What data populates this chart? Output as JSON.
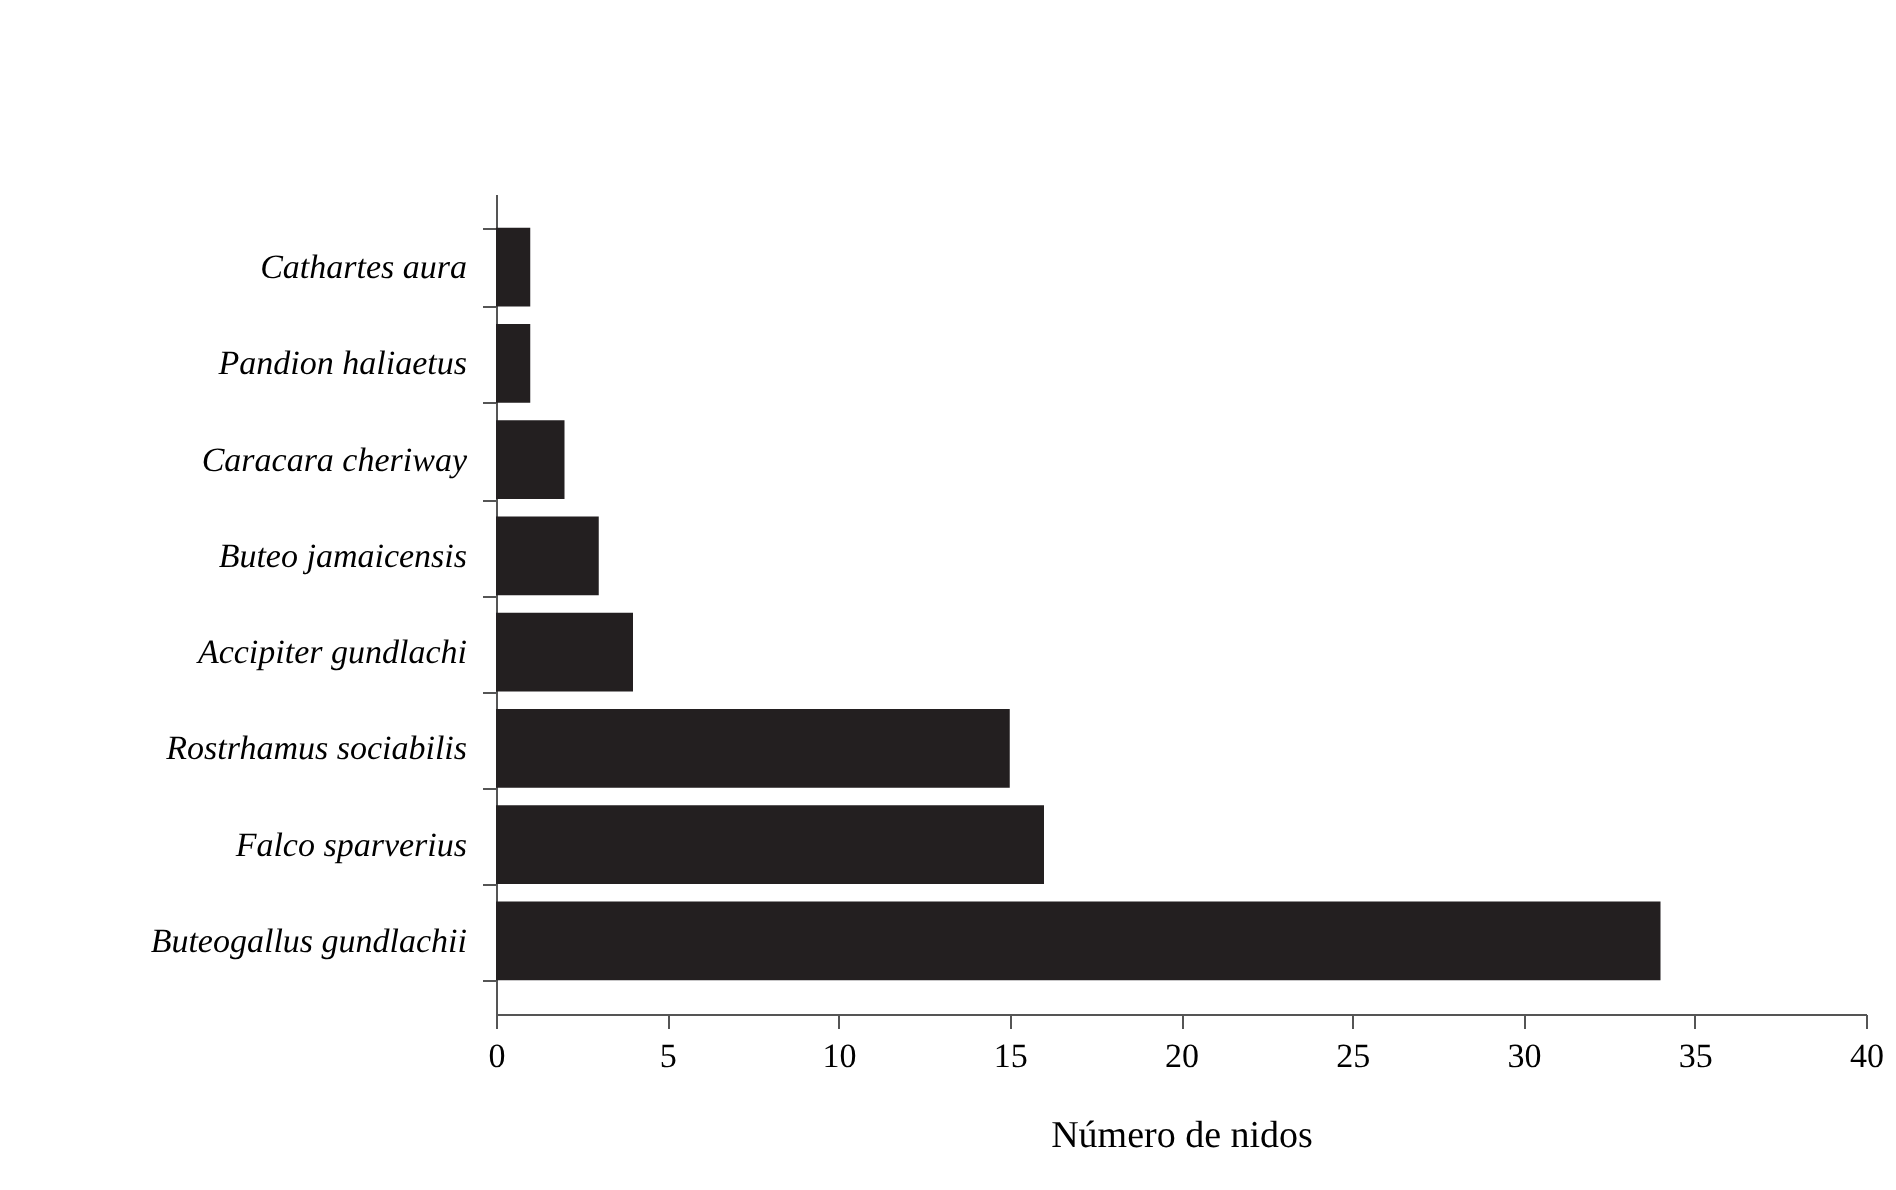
{
  "chart_data": {
    "type": "bar",
    "orientation": "horizontal",
    "xlabel": "Número de nidos",
    "categories": [
      "Cathartes aura",
      "Pandion haliaetus",
      "Caracara cheriway",
      "Buteo jamaicensis",
      "Accipiter gundlachi",
      "Rostrhamus sociabilis",
      "Falco sparverius",
      "Buteogallus gundlachii"
    ],
    "values": [
      1,
      1,
      2,
      3,
      4,
      15,
      16,
      34
    ],
    "color": "#231f20",
    "xlim": [
      0,
      40
    ],
    "xticks": [
      0,
      5,
      10,
      15,
      20,
      25,
      30,
      35,
      40
    ],
    "grid": false
  }
}
